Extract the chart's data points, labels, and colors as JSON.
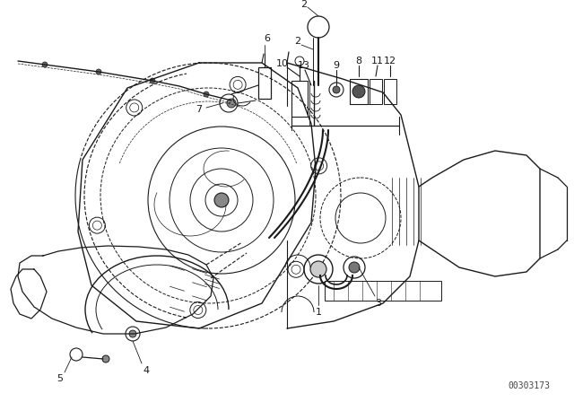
{
  "bg_color": "#ffffff",
  "line_color": "#1a1a1a",
  "fig_width": 6.4,
  "fig_height": 4.48,
  "dpi": 100,
  "watermark": "00303173",
  "watermark_color": "#444444"
}
